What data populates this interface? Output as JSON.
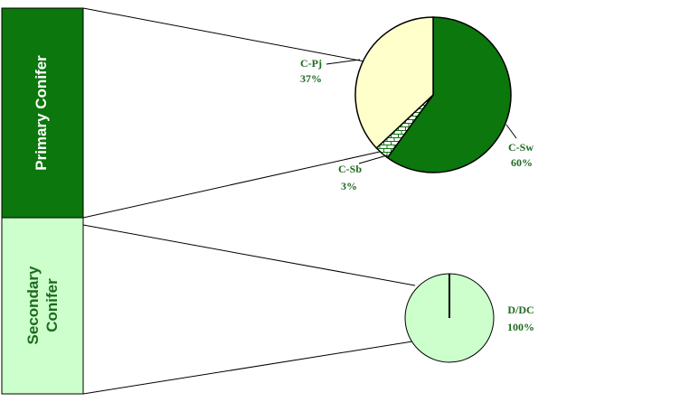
{
  "colors": {
    "primary_bar": "#0c770c",
    "secondary_bar": "#ccffcc",
    "c_sw": "#0c770c",
    "c_pj": "#ffffcc",
    "c_sb_hatch": "#0c770c",
    "d_dc": "#ccffcc",
    "label_text": "#1e6a1e"
  },
  "bars": {
    "primary": {
      "label": "Primary Conifer"
    },
    "secondary": {
      "label_line1": "Secondary",
      "label_line2": "Conifer"
    }
  },
  "chart_data": [
    {
      "type": "pie",
      "group": "Primary Conifer",
      "slices": [
        {
          "name": "C-Sw",
          "value": 60,
          "label": "C-Sw",
          "pct": "60%",
          "fill": "solid"
        },
        {
          "name": "C-Sb",
          "value": 3,
          "label": "C-Sb",
          "pct": "3%",
          "fill": "hatch"
        },
        {
          "name": "C-Pj",
          "value": 37,
          "label": "C-Pj",
          "pct": "37%",
          "fill": "solid"
        }
      ]
    },
    {
      "type": "pie",
      "group": "Secondary Conifer",
      "slices": [
        {
          "name": "D/DC",
          "value": 100,
          "label": "D/DC",
          "pct": "100%",
          "fill": "solid"
        }
      ]
    }
  ]
}
